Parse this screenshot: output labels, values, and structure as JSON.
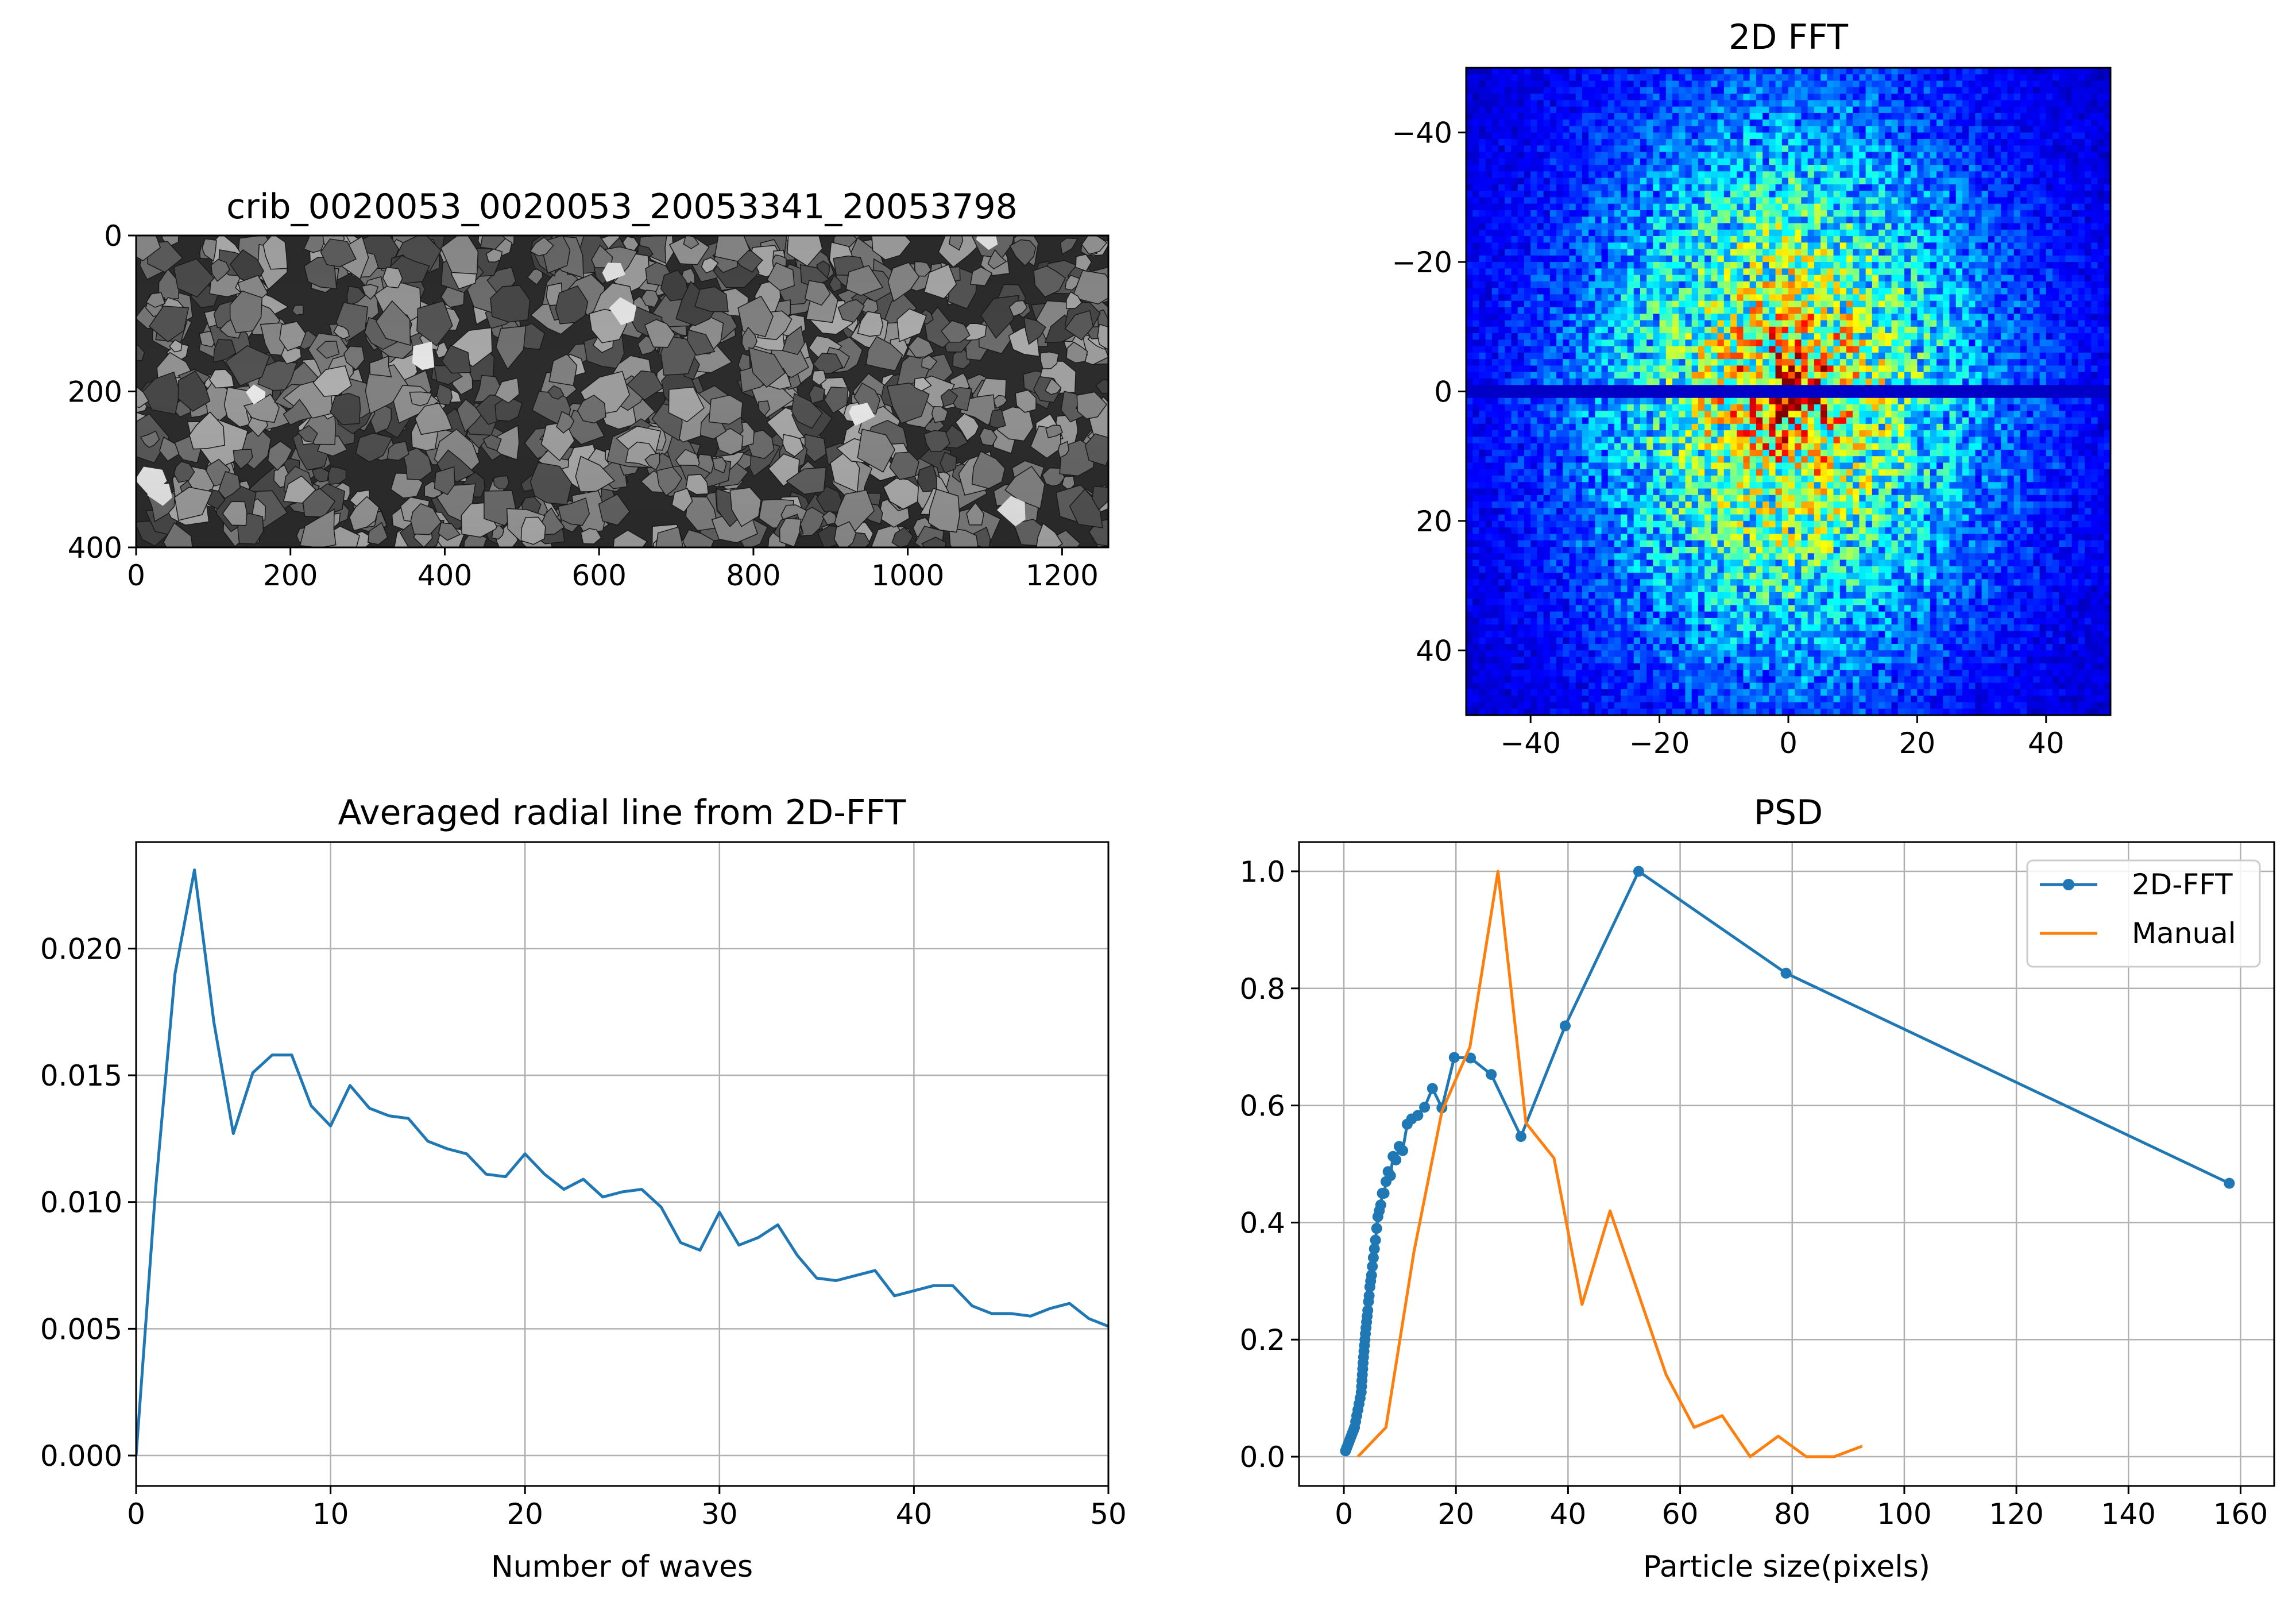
{
  "chart_data": [
    {
      "type": "heatmap",
      "subtype": "image",
      "title": "crib_0020053_0020053_20053341_20053798",
      "image_description": "grayscale photograph of ballast stones",
      "colormap": "gray",
      "xlim": [
        0,
        1260
      ],
      "ylim": [
        400,
        0
      ],
      "x_ticks": [
        0,
        200,
        400,
        600,
        800,
        1000,
        1200
      ],
      "y_ticks": [
        0,
        200,
        400
      ],
      "grid": false
    },
    {
      "type": "heatmap",
      "title": "2D FFT",
      "colormap": "jet",
      "xlim": [
        -50,
        50
      ],
      "ylim": [
        50,
        -50
      ],
      "x_ticks": [
        -40,
        -20,
        0,
        20,
        40
      ],
      "y_ticks": [
        -40,
        -20,
        0,
        20,
        40
      ],
      "features": "energy concentrated near center (0,0), dark horizontal line at y=0",
      "grid": false
    },
    {
      "type": "line",
      "title": "Averaged radial line from 2D-FFT",
      "xlabel": "Number of waves",
      "ylabel": "",
      "xlim": [
        0,
        50
      ],
      "ylim": [
        -0.0012,
        0.0242
      ],
      "x_ticks": [
        0,
        10,
        20,
        30,
        40,
        50
      ],
      "y_ticks": [
        "0.000",
        "0.005",
        "0.010",
        "0.015",
        "0.020"
      ],
      "grid": true,
      "color": "#1f77b4",
      "x": [
        0,
        1,
        2,
        3,
        4,
        5,
        6,
        7,
        8,
        9,
        10,
        11,
        12,
        13,
        14,
        15,
        16,
        17,
        18,
        19,
        20,
        21,
        22,
        23,
        24,
        25,
        26,
        27,
        28,
        29,
        30,
        31,
        32,
        33,
        34,
        35,
        36,
        37,
        38,
        39,
        40,
        41,
        42,
        43,
        44,
        45,
        46,
        47,
        48,
        49,
        50
      ],
      "y": [
        0.0,
        0.0105,
        0.019,
        0.0231,
        0.0171,
        0.0127,
        0.0151,
        0.0158,
        0.0158,
        0.0138,
        0.013,
        0.0146,
        0.0137,
        0.0134,
        0.0133,
        0.0124,
        0.0121,
        0.0119,
        0.0111,
        0.011,
        0.0119,
        0.0111,
        0.0105,
        0.0109,
        0.0102,
        0.0104,
        0.0105,
        0.0098,
        0.0084,
        0.0081,
        0.0096,
        0.0083,
        0.0086,
        0.0091,
        0.0079,
        0.007,
        0.0069,
        0.0071,
        0.0073,
        0.0063,
        0.0065,
        0.0067,
        0.0067,
        0.0059,
        0.0056,
        0.0056,
        0.0055,
        0.0058,
        0.006,
        0.0054,
        0.0051
      ]
    },
    {
      "type": "line",
      "title": "PSD",
      "xlabel": "Particle size(pixels)",
      "ylabel": "",
      "xlim": [
        -8,
        166
      ],
      "ylim": [
        -0.05,
        1.05
      ],
      "x_ticks": [
        0,
        20,
        40,
        60,
        80,
        100,
        120,
        140,
        160
      ],
      "y_ticks": [
        "0.0",
        "0.2",
        "0.4",
        "0.6",
        "0.8",
        "1.0"
      ],
      "grid": true,
      "legend_position": "upper right",
      "series": [
        {
          "name": "2D-FFT",
          "color": "#1f77b4",
          "marker": "circle",
          "x": [
            158,
            78.9,
            52.6,
            39.5,
            31.6,
            26.3,
            22.6,
            19.7,
            17.5,
            15.8,
            14.4,
            13.2,
            12.1,
            11.3,
            10.5,
            9.87,
            9.29,
            8.77,
            8.31,
            7.89,
            7.52,
            7.18,
            6.86,
            6.58,
            6.32,
            6.07,
            5.85,
            5.64,
            5.44,
            5.26,
            5.09,
            4.93,
            4.78,
            4.64,
            4.51,
            4.39,
            4.27,
            4.15,
            4.05,
            3.95,
            3.85,
            3.76,
            3.67,
            3.59,
            3.51,
            3.43,
            3.36,
            3.29,
            3.22,
            3.16,
            3.1,
            2.9,
            2.7,
            2.5,
            2.3,
            2.1,
            1.9,
            1.7,
            1.5,
            1.3,
            1.1,
            0.9,
            0.7,
            0.5,
            0.3
          ],
          "y": [
            0.467,
            0.826,
            1.0,
            0.736,
            0.547,
            0.653,
            0.681,
            0.682,
            0.596,
            0.629,
            0.597,
            0.583,
            0.577,
            0.568,
            0.523,
            0.53,
            0.507,
            0.513,
            0.48,
            0.487,
            0.47,
            0.45,
            0.45,
            0.43,
            0.42,
            0.41,
            0.39,
            0.37,
            0.355,
            0.34,
            0.325,
            0.31,
            0.3,
            0.29,
            0.275,
            0.265,
            0.25,
            0.24,
            0.23,
            0.22,
            0.21,
            0.2,
            0.19,
            0.18,
            0.17,
            0.16,
            0.15,
            0.14,
            0.13,
            0.12,
            0.11,
            0.1,
            0.09,
            0.08,
            0.07,
            0.06,
            0.05,
            0.045,
            0.04,
            0.035,
            0.03,
            0.025,
            0.02,
            0.015,
            0.01
          ]
        },
        {
          "name": "Manual",
          "color": "#ff7f0e",
          "marker": "none",
          "x": [
            2.5,
            7.5,
            12.5,
            17.5,
            22.5,
            27.5,
            32.5,
            37.5,
            42.5,
            47.5,
            52.5,
            57.5,
            62.5,
            67.5,
            72.5,
            77.5,
            82.5,
            87.5,
            92.5
          ],
          "y": [
            0.0,
            0.05,
            0.35,
            0.59,
            0.7,
            1.0,
            0.57,
            0.51,
            0.26,
            0.42,
            0.28,
            0.14,
            0.05,
            0.07,
            0.0,
            0.035,
            0.0,
            0.0,
            0.018
          ]
        }
      ]
    }
  ]
}
